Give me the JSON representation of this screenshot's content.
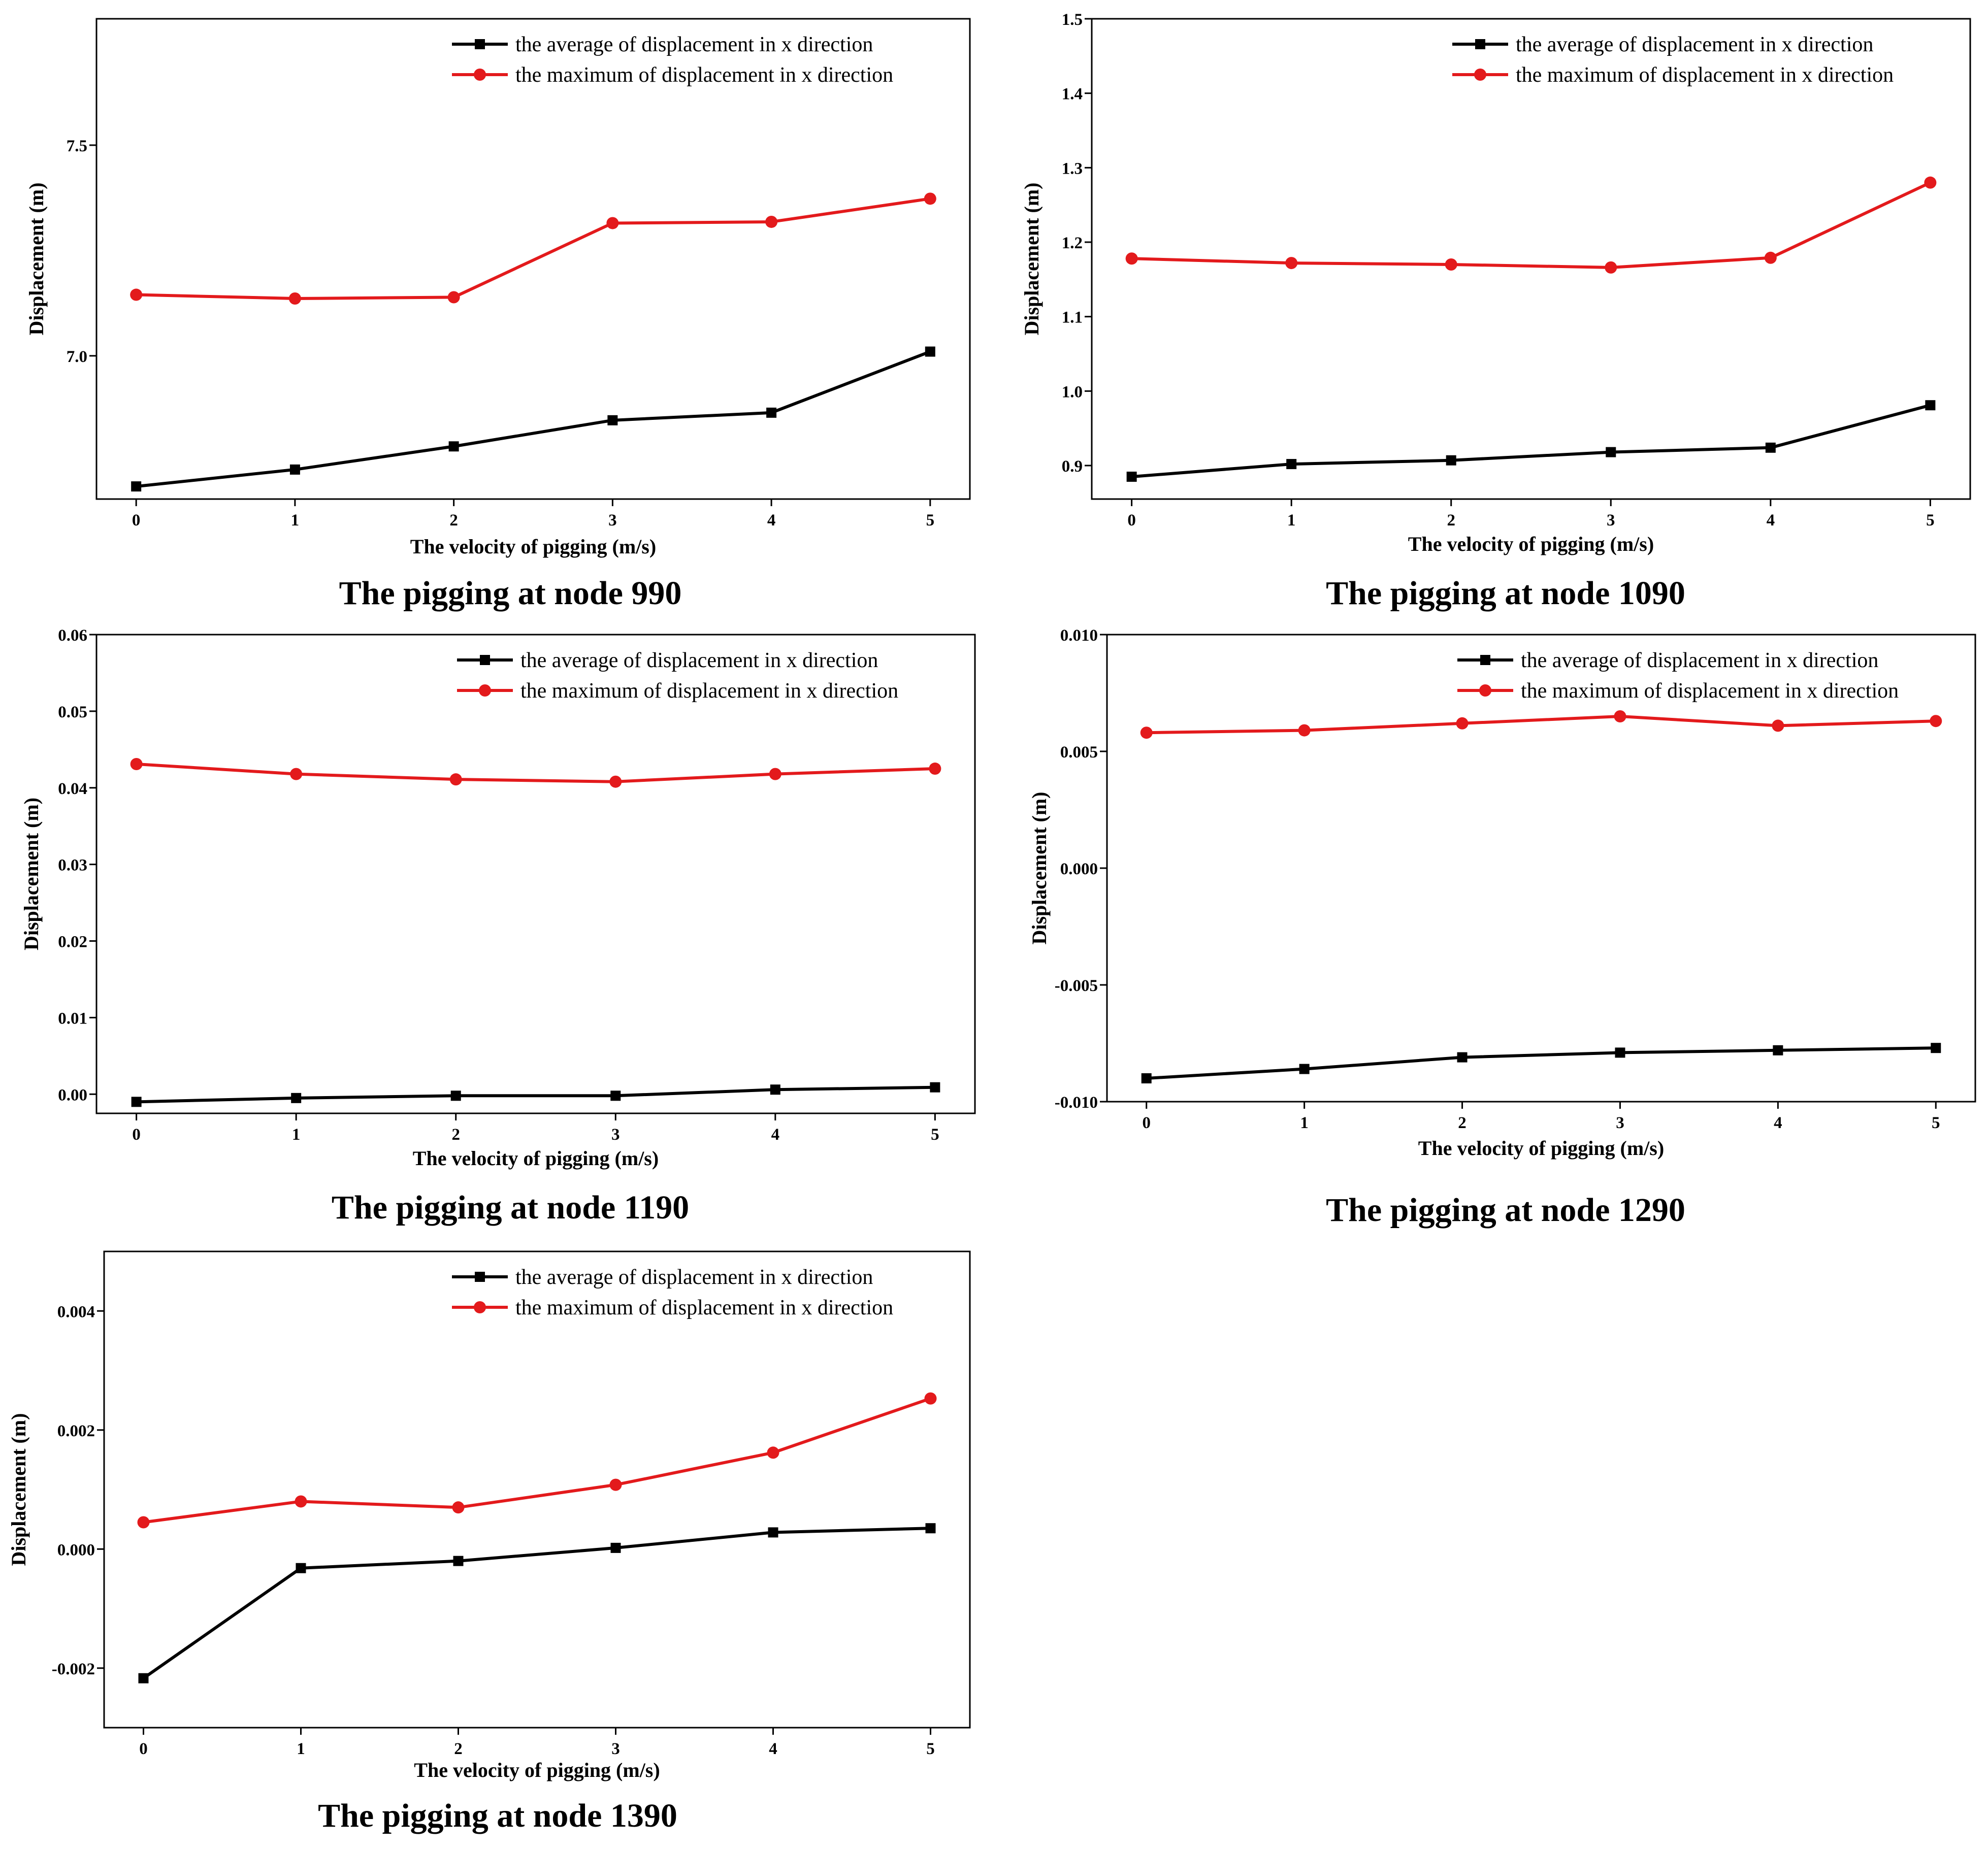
{
  "colors": {
    "average": "#000000",
    "maximum": "#e31a1c",
    "axis": "#000000"
  },
  "chart_data": [
    {
      "type": "line",
      "title": "The pigging at node 990",
      "xlabel": "The velocity of pigging (m/s)",
      "ylabel": "Displacement (m)",
      "x": [
        0,
        1,
        2,
        3,
        4,
        5
      ],
      "xlim": [
        -0.25,
        5.25
      ],
      "ylim": [
        6.66,
        7.8
      ],
      "yticks": [
        7.0,
        7.5
      ],
      "ytick_labels": [
        "7.0",
        "7.5"
      ],
      "legend_position": "top-right",
      "series": [
        {
          "name": "the average of displacement in x direction",
          "marker": "square",
          "values": [
            6.69,
            6.73,
            6.785,
            6.847,
            6.865,
            7.01
          ]
        },
        {
          "name": "the maximum of displacement in x direction",
          "marker": "circle",
          "values": [
            7.145,
            7.136,
            7.139,
            7.315,
            7.318,
            7.373
          ]
        }
      ]
    },
    {
      "type": "line",
      "title": "The pigging at node 1090",
      "xlabel": "The velocity of pigging (m/s)",
      "ylabel": "Displacement (m)",
      "x": [
        0,
        1,
        2,
        3,
        4,
        5
      ],
      "xlim": [
        -0.25,
        5.25
      ],
      "ylim": [
        0.855,
        1.5
      ],
      "yticks": [
        0.9,
        1.0,
        1.1,
        1.2,
        1.3,
        1.4,
        1.5
      ],
      "ytick_labels": [
        "0.9",
        "1.0",
        "1.1",
        "1.2",
        "1.3",
        "1.4",
        "1.5"
      ],
      "legend_position": "top-right",
      "series": [
        {
          "name": "the average of displacement in x direction",
          "marker": "square",
          "values": [
            0.885,
            0.902,
            0.907,
            0.918,
            0.924,
            0.981
          ]
        },
        {
          "name": "the maximum of displacement in x direction",
          "marker": "circle",
          "values": [
            1.178,
            1.172,
            1.17,
            1.166,
            1.179,
            1.28
          ]
        }
      ]
    },
    {
      "type": "line",
      "title": "The pigging at node 1190",
      "xlabel": "The velocity of pigging (m/s)",
      "ylabel": "Displacement (m)",
      "x": [
        0,
        1,
        2,
        3,
        4,
        5
      ],
      "xlim": [
        -0.25,
        5.25
      ],
      "ylim": [
        -0.0025,
        0.06
      ],
      "yticks": [
        0.0,
        0.01,
        0.02,
        0.03,
        0.04,
        0.05,
        0.06
      ],
      "ytick_labels": [
        "0.00",
        "0.01",
        "0.02",
        "0.03",
        "0.04",
        "0.05",
        "0.06"
      ],
      "legend_position": "top-right",
      "series": [
        {
          "name": "the average of displacement in x direction",
          "marker": "square",
          "values": [
            -0.001,
            -0.0005,
            -0.0002,
            -0.0002,
            0.0006,
            0.0009
          ]
        },
        {
          "name": "the maximum of displacement in x direction",
          "marker": "circle",
          "values": [
            0.0431,
            0.0418,
            0.0411,
            0.0408,
            0.0418,
            0.0425
          ]
        }
      ]
    },
    {
      "type": "line",
      "title": "The pigging at node 1290",
      "xlabel": "The velocity of pigging (m/s)",
      "ylabel": "Displacement (m)",
      "x": [
        0,
        1,
        2,
        3,
        4,
        5
      ],
      "xlim": [
        -0.25,
        5.25
      ],
      "ylim": [
        -0.01,
        0.01
      ],
      "yticks": [
        -0.01,
        -0.005,
        0.0,
        0.005,
        0.01
      ],
      "ytick_labels": [
        "-0.010",
        "-0.005",
        "0.000",
        "0.005",
        "0.010"
      ],
      "legend_position": "top-right",
      "series": [
        {
          "name": "the average of displacement in x direction",
          "marker": "square",
          "values": [
            -0.009,
            -0.0086,
            -0.0081,
            -0.0079,
            -0.0078,
            -0.0077
          ]
        },
        {
          "name": "the maximum of displacement in x direction",
          "marker": "circle",
          "values": [
            0.0058,
            0.0059,
            0.0062,
            0.0065,
            0.0061,
            0.0063
          ]
        }
      ]
    },
    {
      "type": "line",
      "title": "The pigging at node 1390",
      "xlabel": "The velocity of pigging (m/s)",
      "ylabel": "Displacement (m)",
      "x": [
        0,
        1,
        2,
        3,
        4,
        5
      ],
      "xlim": [
        -0.25,
        5.25
      ],
      "ylim": [
        -0.003,
        0.005
      ],
      "yticks": [
        -0.002,
        0.0,
        0.002,
        0.004
      ],
      "ytick_labels": [
        "-0.002",
        "0.000",
        "0.002",
        "0.004"
      ],
      "legend_position": "top-right",
      "series": [
        {
          "name": "the average of displacement in x direction",
          "marker": "square",
          "values": [
            -0.00217,
            -0.00032,
            -0.0002,
            2e-05,
            0.00028,
            0.00035
          ]
        },
        {
          "name": "the maximum of displacement in x direction",
          "marker": "circle",
          "values": [
            0.00045,
            0.0008,
            0.0007,
            0.00108,
            0.00162,
            0.00253
          ]
        }
      ]
    }
  ]
}
